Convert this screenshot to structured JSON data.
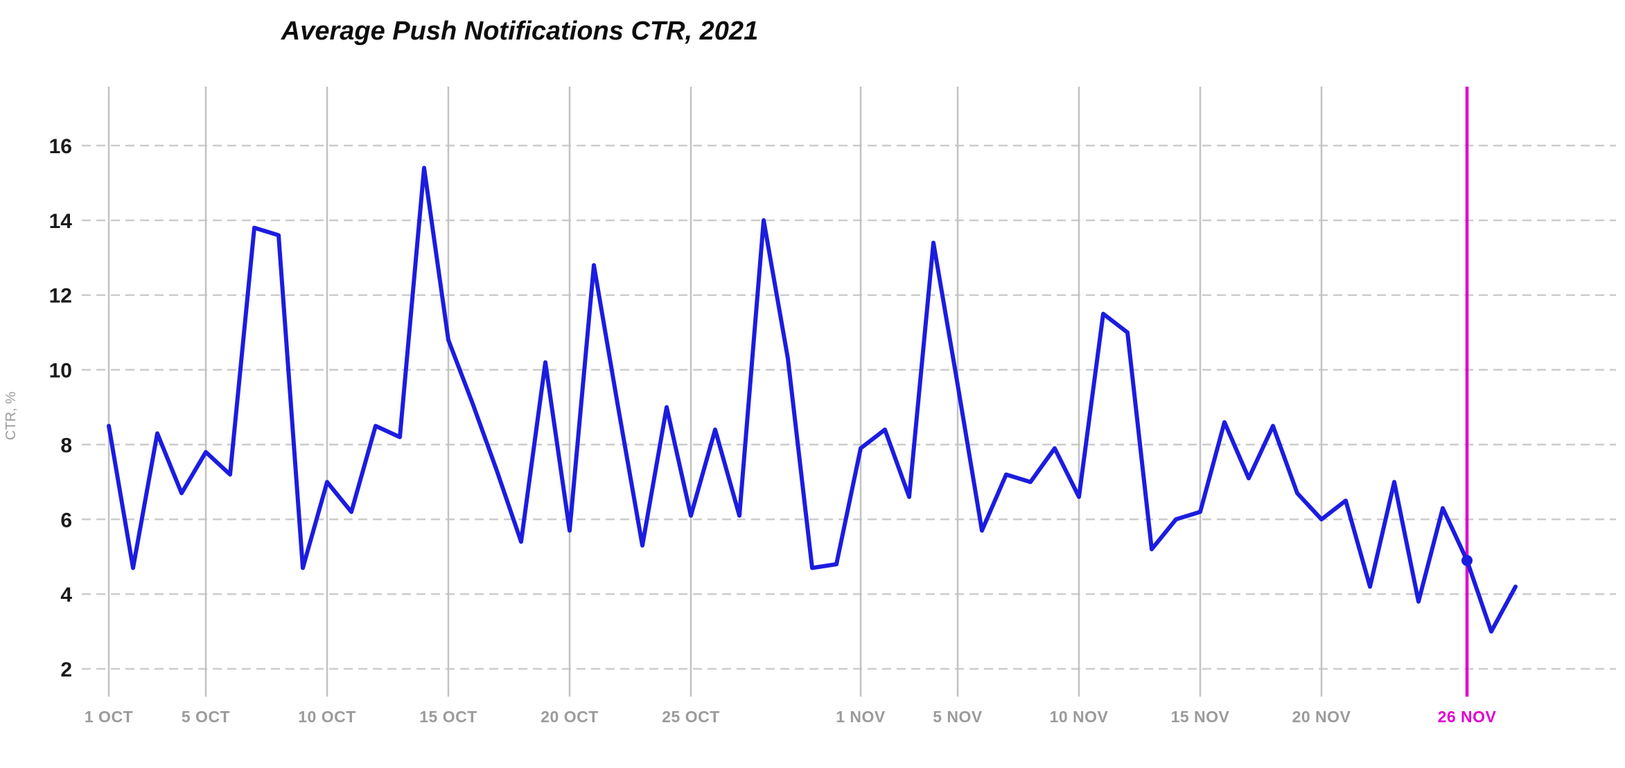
{
  "title": "Average Push Notifications CTR, 2021",
  "colors": {
    "line": "#1C1CE0",
    "highlight": "#E000D0",
    "grid_dashed": "#CCCCCC",
    "grid_vertical": "#C2C2C2",
    "ytick_label": "#1A1A1A",
    "xtick_label": "#9B9B9B",
    "axis_label": "#9B9B9B",
    "title_color": "#0D0D0D",
    "background": "#FFFFFF"
  },
  "chart_data": {
    "type": "line",
    "title": "Average Push Notifications CTR, 2021",
    "xlabel": "",
    "ylabel": "CTR, %",
    "ylim": [
      2,
      16
    ],
    "yticks": [
      2,
      4,
      6,
      8,
      10,
      12,
      14,
      16
    ],
    "grid": "horizontal dashed, vertical solid at labeled dates",
    "legend": "none",
    "x_dates": [
      "1 OCT",
      "2 OCT",
      "3 OCT",
      "4 OCT",
      "5 OCT",
      "6 OCT",
      "7 OCT",
      "8 OCT",
      "9 OCT",
      "10 OCT",
      "11 OCT",
      "12 OCT",
      "13 OCT",
      "14 OCT",
      "15 OCT",
      "16 OCT",
      "17 OCT",
      "18 OCT",
      "19 OCT",
      "20 OCT",
      "21 OCT",
      "22 OCT",
      "23 OCT",
      "24 OCT",
      "25 OCT",
      "26 OCT",
      "27 OCT",
      "28 OCT",
      "29 OCT",
      "30 OCT",
      "31 OCT",
      "1 NOV",
      "2 NOV",
      "3 NOV",
      "4 NOV",
      "5 NOV",
      "6 NOV",
      "7 NOV",
      "8 NOV",
      "9 NOV",
      "10 NOV",
      "11 NOV",
      "12 NOV",
      "13 NOV",
      "14 NOV",
      "15 NOV",
      "16 NOV",
      "17 NOV",
      "18 NOV",
      "19 NOV",
      "20 NOV",
      "21 NOV",
      "22 NOV",
      "23 NOV",
      "24 NOV",
      "25 NOV",
      "26 NOV",
      "27 NOV",
      "28 NOV"
    ],
    "values": [
      8.5,
      4.7,
      8.3,
      6.7,
      7.8,
      7.2,
      13.8,
      13.6,
      4.7,
      7.0,
      6.2,
      8.5,
      8.2,
      15.4,
      10.8,
      9.1,
      7.3,
      5.4,
      10.2,
      5.7,
      12.8,
      9.0,
      5.3,
      9.0,
      6.1,
      8.4,
      6.1,
      14.0,
      10.3,
      4.7,
      4.8,
      7.9,
      8.4,
      6.6,
      13.4,
      9.6,
      5.7,
      7.2,
      7.0,
      7.9,
      6.6,
      11.5,
      11.0,
      5.2,
      6.0,
      6.2,
      8.6,
      7.1,
      8.5,
      6.7,
      6.0,
      6.5,
      4.2,
      7.0,
      3.8,
      6.3,
      4.9,
      3.0,
      4.2
    ],
    "xticks": [
      {
        "label": "1 OCT",
        "day": 0,
        "highlight": false
      },
      {
        "label": "5 OCT",
        "day": 4,
        "highlight": false
      },
      {
        "label": "10 OCT",
        "day": 9,
        "highlight": false
      },
      {
        "label": "15 OCT",
        "day": 14,
        "highlight": false
      },
      {
        "label": "20 OCT",
        "day": 19,
        "highlight": false
      },
      {
        "label": "25 OCT",
        "day": 24,
        "highlight": false
      },
      {
        "label": "1 NOV",
        "day": 31,
        "highlight": false
      },
      {
        "label": "5 NOV",
        "day": 35,
        "highlight": false
      },
      {
        "label": "10 NOV",
        "day": 40,
        "highlight": false
      },
      {
        "label": "15 NOV",
        "day": 45,
        "highlight": false
      },
      {
        "label": "20 NOV",
        "day": 50,
        "highlight": false
      },
      {
        "label": "26 NOV",
        "day": 56,
        "highlight": true
      }
    ],
    "highlight_point": {
      "label": "26 NOV",
      "day": 56,
      "value": 4.9
    }
  }
}
